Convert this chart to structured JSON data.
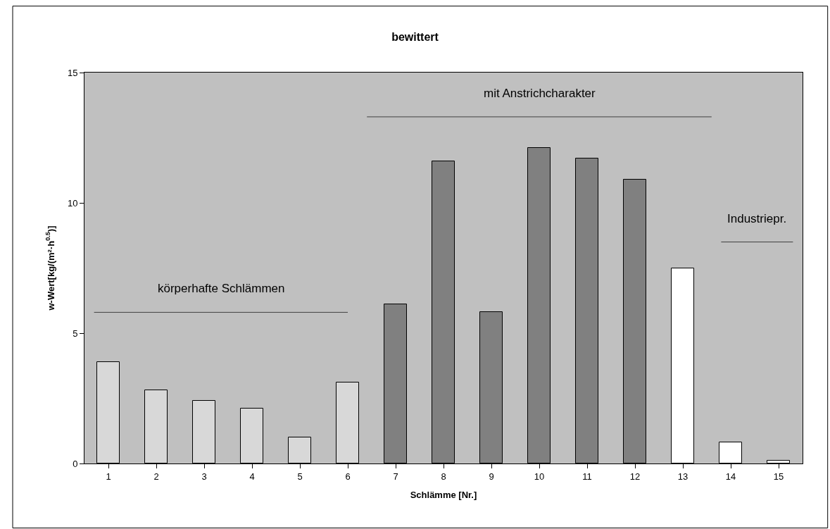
{
  "chart_data": {
    "type": "bar",
    "title": "bewittert",
    "xlabel": "Schlämme [Nr.]",
    "ylabel": "w-Wert[kg/(m²·h$^{0.5}$)]",
    "x": [
      1,
      2,
      3,
      4,
      5,
      6,
      7,
      8,
      9,
      10,
      11,
      12,
      13,
      14,
      15
    ],
    "xlim": [
      0.5,
      15.5
    ],
    "xticks": [
      1,
      2,
      3,
      4,
      5,
      6,
      7,
      8,
      9,
      10,
      11,
      12,
      13,
      14,
      15
    ],
    "ylim": [
      0,
      15
    ],
    "yticks": [
      0,
      5,
      10,
      15
    ],
    "series": [
      {
        "values": [
          3.9,
          2.8,
          2.4,
          2.1,
          1.0,
          3.1,
          6.1,
          11.6,
          5.8,
          12.1,
          11.7,
          10.9,
          7.5,
          0.8,
          0.1
        ],
        "colors": [
          "#d8d8d8",
          "#d8d8d8",
          "#d8d8d8",
          "#d8d8d8",
          "#d8d8d8",
          "#d8d8d8",
          "#808080",
          "#808080",
          "#808080",
          "#808080",
          "#808080",
          "#808080",
          "#ffffff",
          "#ffffff",
          "#ffffff"
        ]
      },
      {
        "type": "line",
        "name": "körperhafte Schlämmen",
        "x": [
          0.7,
          6.0
        ],
        "values": [
          5.8,
          5.8
        ],
        "color": "#404040"
      },
      {
        "type": "line",
        "name": "mit Anstrichcharakter",
        "x": [
          6.4,
          13.6
        ],
        "values": [
          13.3,
          13.3
        ],
        "color": "#404040"
      },
      {
        "type": "line",
        "name": "Industriepr.",
        "x": [
          13.8,
          15.3
        ],
        "values": [
          8.5,
          8.5
        ],
        "color": "#404040"
      }
    ],
    "grid": false,
    "legend": false
  }
}
